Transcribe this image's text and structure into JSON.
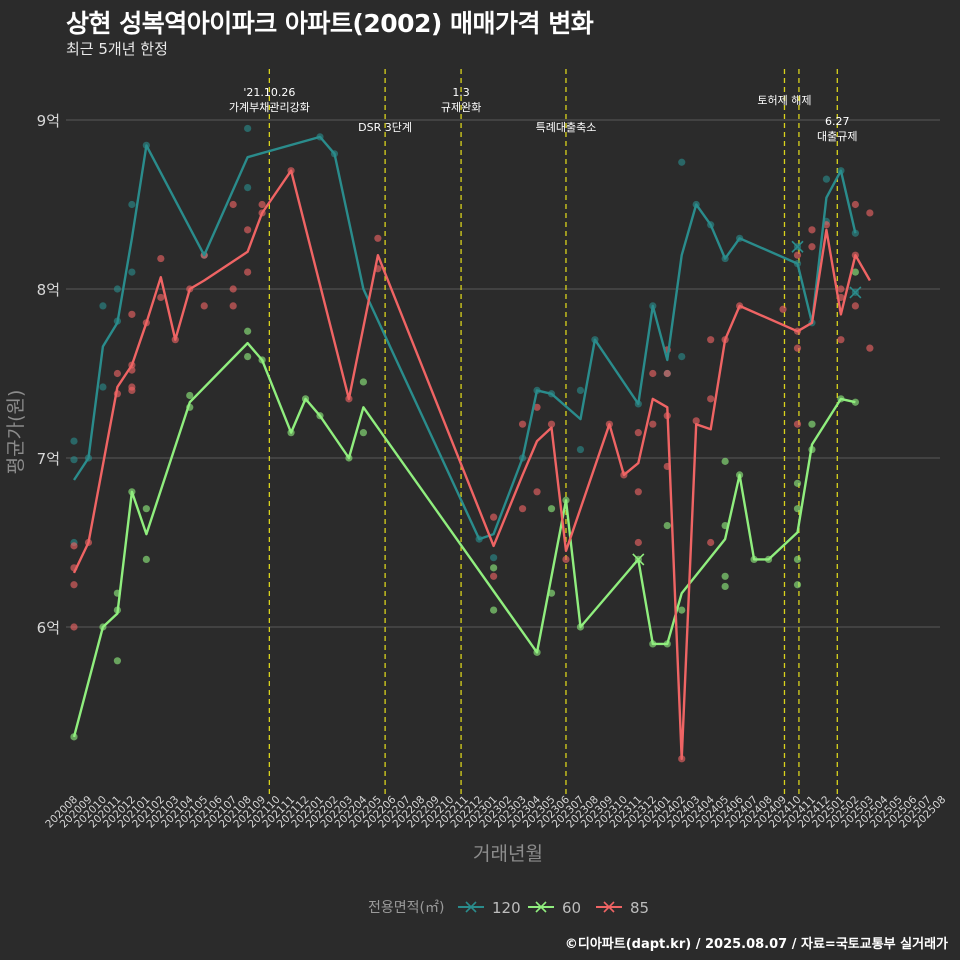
{
  "header": {
    "title": "상현 성복역아이파크 아파트(2002) 매매가격 변화",
    "subtitle": "최근 5개년 한정"
  },
  "caption": "©디아파트(dapt.kr) / 2025.08.07 / 자료=국토교통부 실거래가",
  "chart_data": {
    "type": "line",
    "xlabel": "거래년월",
    "ylabel": "평균가(원)",
    "ylim": [
      5.0,
      9.4
    ],
    "yticks": [
      6,
      7,
      8,
      9
    ],
    "ytick_labels": [
      "6억",
      "7억",
      "8억",
      "9억"
    ],
    "x_categories": [
      "202008",
      "202009",
      "202010",
      "202011",
      "202012",
      "202101",
      "202102",
      "202103",
      "202104",
      "202105",
      "202106",
      "202107",
      "202108",
      "202109",
      "202110",
      "202111",
      "202112",
      "202201",
      "202202",
      "202203",
      "202204",
      "202205",
      "202206",
      "202207",
      "202208",
      "202209",
      "202210",
      "202211",
      "202212",
      "202301",
      "202302",
      "202303",
      "202304",
      "202305",
      "202306",
      "202307",
      "202308",
      "202309",
      "202310",
      "202311",
      "202312",
      "202401",
      "202402",
      "202403",
      "202404",
      "202405",
      "202406",
      "202407",
      "202408",
      "202409",
      "202410",
      "202411",
      "202412",
      "202501",
      "202502",
      "202503",
      "202504",
      "202505",
      "202506",
      "202507",
      "202508"
    ],
    "legend": {
      "title": "전용면적(㎡)",
      "position": "bottom"
    },
    "series": [
      {
        "name": "120",
        "color": "#2a8c8c",
        "line": [
          [
            0,
            6.87
          ],
          [
            1,
            7.0
          ],
          [
            2,
            7.66
          ],
          [
            3,
            7.8
          ],
          [
            4,
            8.3
          ],
          [
            5,
            8.85
          ],
          [
            9,
            8.2
          ],
          [
            12,
            8.78
          ],
          [
            17,
            8.9
          ],
          [
            18,
            8.8
          ],
          [
            20,
            8.0
          ],
          [
            28,
            6.52
          ],
          [
            29,
            6.55
          ],
          [
            31,
            7.0
          ],
          [
            32,
            7.4
          ],
          [
            33,
            7.38
          ],
          [
            35,
            7.23
          ],
          [
            36,
            7.7
          ],
          [
            39,
            7.32
          ],
          [
            40,
            7.9
          ],
          [
            41,
            7.58
          ],
          [
            42,
            8.2
          ],
          [
            43,
            8.5
          ],
          [
            44,
            8.38
          ],
          [
            45,
            8.18
          ],
          [
            46,
            8.3
          ],
          [
            50,
            8.15
          ],
          [
            51,
            7.8
          ],
          [
            52,
            8.54
          ],
          [
            53,
            8.7
          ],
          [
            54,
            8.33
          ]
        ],
        "points": [
          [
            0,
            7.1
          ],
          [
            0,
            6.99
          ],
          [
            0,
            6.5
          ],
          [
            1,
            7.0
          ],
          [
            2,
            7.42
          ],
          [
            2,
            7.9
          ],
          [
            3,
            8.0
          ],
          [
            3,
            7.81
          ],
          [
            4,
            8.5
          ],
          [
            4,
            8.1
          ],
          [
            5,
            8.85
          ],
          [
            9,
            8.2
          ],
          [
            12,
            8.95
          ],
          [
            12,
            8.6
          ],
          [
            17,
            8.9
          ],
          [
            18,
            8.8
          ],
          [
            28,
            6.52
          ],
          [
            29,
            6.41
          ],
          [
            31,
            7.0
          ],
          [
            32,
            7.4
          ],
          [
            33,
            7.38
          ],
          [
            35,
            7.4
          ],
          [
            35,
            7.05
          ],
          [
            36,
            7.7
          ],
          [
            39,
            7.32
          ],
          [
            40,
            7.9
          ],
          [
            41,
            7.5
          ],
          [
            42,
            7.6
          ],
          [
            42,
            8.75
          ],
          [
            43,
            8.5
          ],
          [
            44,
            8.38
          ],
          [
            45,
            8.18
          ],
          [
            46,
            8.3
          ],
          [
            50,
            8.25
          ],
          [
            50,
            8.15
          ],
          [
            51,
            7.8
          ],
          [
            52,
            8.65
          ],
          [
            52,
            8.4
          ],
          [
            53,
            8.7
          ],
          [
            54,
            8.33
          ],
          [
            54,
            7.98
          ]
        ]
      },
      {
        "name": "60",
        "color": "#90ee7e",
        "line": [
          [
            0,
            5.35
          ],
          [
            2,
            6.0
          ],
          [
            3,
            6.08
          ],
          [
            4,
            6.8
          ],
          [
            5,
            6.55
          ],
          [
            8,
            7.33
          ],
          [
            12,
            7.68
          ],
          [
            13,
            7.58
          ],
          [
            15,
            7.15
          ],
          [
            16,
            7.35
          ],
          [
            17,
            7.25
          ],
          [
            19,
            7.0
          ],
          [
            20,
            7.3
          ],
          [
            32,
            5.85
          ],
          [
            34,
            6.75
          ],
          [
            35,
            6.0
          ],
          [
            39,
            6.4
          ],
          [
            40,
            5.9
          ],
          [
            41,
            5.9
          ],
          [
            42,
            6.2
          ],
          [
            45,
            6.52
          ],
          [
            46,
            6.9
          ],
          [
            47,
            6.4
          ],
          [
            48,
            6.4
          ],
          [
            50,
            6.56
          ],
          [
            51,
            7.08
          ],
          [
            53,
            7.35
          ],
          [
            54,
            7.33
          ]
        ],
        "points": [
          [
            0,
            5.35
          ],
          [
            2,
            6.0
          ],
          [
            3,
            6.2
          ],
          [
            3,
            6.1
          ],
          [
            3,
            5.8
          ],
          [
            4,
            6.8
          ],
          [
            5,
            6.7
          ],
          [
            5,
            6.4
          ],
          [
            8,
            7.37
          ],
          [
            8,
            7.3
          ],
          [
            12,
            7.75
          ],
          [
            12,
            7.6
          ],
          [
            13,
            7.58
          ],
          [
            15,
            7.15
          ],
          [
            16,
            7.35
          ],
          [
            17,
            7.25
          ],
          [
            19,
            7.0
          ],
          [
            20,
            7.45
          ],
          [
            20,
            7.15
          ],
          [
            29,
            6.35
          ],
          [
            29,
            6.1
          ],
          [
            32,
            5.85
          ],
          [
            33,
            6.7
          ],
          [
            33,
            6.2
          ],
          [
            34,
            6.75
          ],
          [
            35,
            6.0
          ],
          [
            39,
            6.4
          ],
          [
            40,
            5.9
          ],
          [
            41,
            5.9
          ],
          [
            41,
            6.6
          ],
          [
            42,
            6.1
          ],
          [
            45,
            6.98
          ],
          [
            45,
            6.6
          ],
          [
            45,
            6.3
          ],
          [
            45,
            6.24
          ],
          [
            46,
            6.9
          ],
          [
            47,
            6.4
          ],
          [
            48,
            6.4
          ],
          [
            50,
            6.85
          ],
          [
            50,
            6.7
          ],
          [
            50,
            6.4
          ],
          [
            50,
            6.25
          ],
          [
            51,
            7.2
          ],
          [
            51,
            7.05
          ],
          [
            53,
            7.35
          ],
          [
            54,
            7.33
          ],
          [
            54,
            8.1
          ]
        ]
      },
      {
        "name": "85",
        "color": "#ef6464",
        "line": [
          [
            0,
            6.32
          ],
          [
            1,
            6.5
          ],
          [
            3,
            7.42
          ],
          [
            4,
            7.55
          ],
          [
            5,
            7.8
          ],
          [
            6,
            8.07
          ],
          [
            7,
            7.7
          ],
          [
            8,
            8.0
          ],
          [
            9,
            8.05
          ],
          [
            12,
            8.22
          ],
          [
            13,
            8.45
          ],
          [
            15,
            8.7
          ],
          [
            19,
            7.35
          ],
          [
            21,
            8.2
          ],
          [
            29,
            6.48
          ],
          [
            31,
            6.9
          ],
          [
            32,
            7.1
          ],
          [
            33,
            7.18
          ],
          [
            34,
            6.45
          ],
          [
            37,
            7.2
          ],
          [
            38,
            6.9
          ],
          [
            39,
            6.97
          ],
          [
            40,
            7.35
          ],
          [
            41,
            7.3
          ],
          [
            42,
            5.22
          ],
          [
            43,
            7.2
          ],
          [
            44,
            7.17
          ],
          [
            45,
            7.7
          ],
          [
            46,
            7.9
          ],
          [
            50,
            7.75
          ],
          [
            51,
            7.8
          ],
          [
            52,
            8.35
          ],
          [
            53,
            7.85
          ],
          [
            54,
            8.2
          ],
          [
            55,
            8.05
          ]
        ],
        "points": [
          [
            0,
            6.48
          ],
          [
            0,
            6.35
          ],
          [
            0,
            6.25
          ],
          [
            0,
            6.0
          ],
          [
            1,
            6.5
          ],
          [
            3,
            7.5
          ],
          [
            3,
            7.38
          ],
          [
            4,
            7.85
          ],
          [
            4,
            7.55
          ],
          [
            4,
            7.52
          ],
          [
            4,
            7.42
          ],
          [
            4,
            7.4
          ],
          [
            5,
            7.8
          ],
          [
            6,
            8.18
          ],
          [
            6,
            7.95
          ],
          [
            7,
            7.7
          ],
          [
            8,
            8.0
          ],
          [
            9,
            8.2
          ],
          [
            9,
            7.9
          ],
          [
            11,
            8.5
          ],
          [
            11,
            8.0
          ],
          [
            11,
            7.9
          ],
          [
            12,
            8.35
          ],
          [
            12,
            8.1
          ],
          [
            13,
            8.5
          ],
          [
            13,
            8.45
          ],
          [
            15,
            8.7
          ],
          [
            19,
            7.35
          ],
          [
            21,
            8.3
          ],
          [
            21,
            8.12
          ],
          [
            29,
            6.65
          ],
          [
            29,
            6.3
          ],
          [
            31,
            6.7
          ],
          [
            31,
            7.2
          ],
          [
            32,
            7.3
          ],
          [
            32,
            6.8
          ],
          [
            33,
            7.2
          ],
          [
            34,
            6.4
          ],
          [
            37,
            7.2
          ],
          [
            38,
            6.9
          ],
          [
            39,
            7.15
          ],
          [
            39,
            6.8
          ],
          [
            39,
            6.5
          ],
          [
            40,
            7.5
          ],
          [
            40,
            7.2
          ],
          [
            41,
            7.5
          ],
          [
            41,
            7.25
          ],
          [
            41,
            6.95
          ],
          [
            41,
            7.64
          ],
          [
            42,
            5.22
          ],
          [
            43,
            7.22
          ],
          [
            44,
            7.35
          ],
          [
            44,
            7.7
          ],
          [
            44,
            6.5
          ],
          [
            45,
            7.7
          ],
          [
            46,
            7.9
          ],
          [
            49,
            7.88
          ],
          [
            50,
            7.75
          ],
          [
            50,
            8.2
          ],
          [
            50,
            7.2
          ],
          [
            50,
            7.65
          ],
          [
            51,
            8.25
          ],
          [
            51,
            8.35
          ],
          [
            52,
            8.38
          ],
          [
            53,
            7.7
          ],
          [
            53,
            7.95
          ],
          [
            53,
            8.0
          ],
          [
            54,
            8.5
          ],
          [
            54,
            8.2
          ],
          [
            54,
            7.9
          ],
          [
            55,
            8.45
          ],
          [
            55,
            7.65
          ]
        ]
      }
    ],
    "cross_markers": [
      {
        "series": "120",
        "x": 50,
        "y": 8.25
      },
      {
        "series": "120",
        "x": 54,
        "y": 7.98
      },
      {
        "series": "60",
        "x": 39,
        "y": 6.4
      }
    ],
    "vlines": [
      {
        "x": 13.5,
        "label": [
          "'21.10.26",
          "가계부채관리강화"
        ]
      },
      {
        "x": 21.5,
        "label": [
          "DSR 3단계"
        ]
      },
      {
        "x": 26.75,
        "label": [
          "1.3",
          "규제완화"
        ]
      },
      {
        "x": 34.0,
        "label": [
          "특례대출축소"
        ]
      },
      {
        "x": 49.1,
        "label": [
          "토허제 해제"
        ]
      },
      {
        "x": 50.1,
        "label": []
      },
      {
        "x": 52.75,
        "label": [
          "6.27",
          "대출규제"
        ]
      }
    ]
  }
}
